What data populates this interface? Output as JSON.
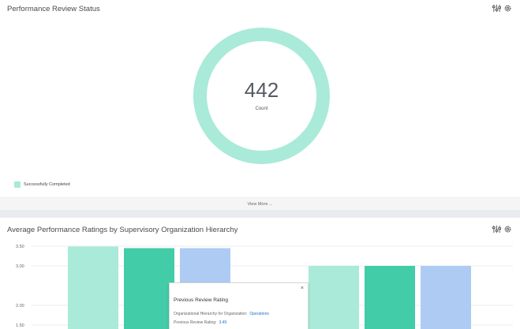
{
  "status_card": {
    "title": "Performance Review Status",
    "donut_value": "442",
    "donut_label": "Count",
    "legend_label": "Successfully Completed",
    "legend_color": "#a9ead8",
    "view_more": "View More ..."
  },
  "ratings_card": {
    "title": "Average Performance Ratings by Supervisory Organization Hierarchy"
  },
  "tooltip": {
    "title": "Previous Review Rating",
    "row1_label": "Organizational Hierarchy for Organization:",
    "row1_value": "Operations",
    "row2_label": "Previous Review Rating:",
    "row2_value": "3.49",
    "close": "×"
  },
  "icons": [
    "chart-options-icon",
    "gear-icon"
  ],
  "chart_data": {
    "type": "bar",
    "title": "Average Performance Ratings by Supervisory Organization Hierarchy",
    "y_ticks": [
      "3.50",
      "3.00",
      "2.00",
      "1.50"
    ],
    "ylim": [
      1.5,
      3.5
    ],
    "groups": [
      {
        "values": [
          3.49,
          3.45,
          3.45
        ],
        "colors": [
          "#a9ead8",
          "#43cca8",
          "#aecbf4"
        ]
      },
      {
        "values": [
          3.0,
          3.0,
          3.0
        ],
        "colors": [
          "#a9ead8",
          "#43cca8",
          "#aecbf4"
        ]
      }
    ]
  }
}
